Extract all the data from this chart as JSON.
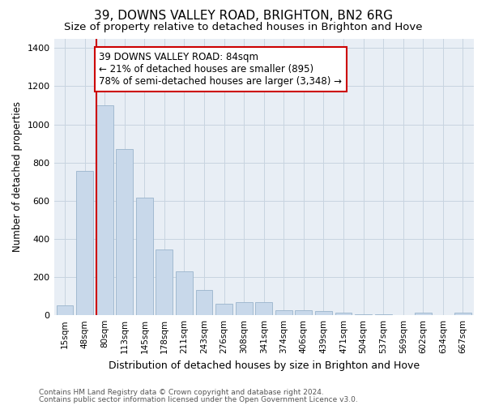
{
  "title": "39, DOWNS VALLEY ROAD, BRIGHTON, BN2 6RG",
  "subtitle": "Size of property relative to detached houses in Brighton and Hove",
  "xlabel": "Distribution of detached houses by size in Brighton and Hove",
  "ylabel": "Number of detached properties",
  "categories": [
    "15sqm",
    "48sqm",
    "80sqm",
    "113sqm",
    "145sqm",
    "178sqm",
    "211sqm",
    "243sqm",
    "276sqm",
    "308sqm",
    "341sqm",
    "374sqm",
    "406sqm",
    "439sqm",
    "471sqm",
    "504sqm",
    "537sqm",
    "569sqm",
    "602sqm",
    "634sqm",
    "667sqm"
  ],
  "values": [
    50,
    755,
    1100,
    870,
    615,
    345,
    228,
    133,
    60,
    70,
    70,
    28,
    25,
    20,
    14,
    5,
    5,
    0,
    12,
    0,
    12
  ],
  "bar_color": "#c8d8ea",
  "bar_edge_color": "#9ab4cc",
  "vline_bar_index": 2,
  "annotation_line1": "39 DOWNS VALLEY ROAD: 84sqm",
  "annotation_line2": "← 21% of detached houses are smaller (895)",
  "annotation_line3": "78% of semi-detached houses are larger (3,348) →",
  "vline_color": "#cc0000",
  "annotation_box_edge_color": "#cc0000",
  "annotation_box_face_color": "#ffffff",
  "ylim": [
    0,
    1450
  ],
  "yticks": [
    0,
    200,
    400,
    600,
    800,
    1000,
    1200,
    1400
  ],
  "footer1": "Contains HM Land Registry data © Crown copyright and database right 2024.",
  "footer2": "Contains public sector information licensed under the Open Government Licence v3.0.",
  "bg_color": "#ffffff",
  "plot_bg_color": "#e8eef5",
  "grid_color": "#c8d4e0",
  "title_fontsize": 11,
  "subtitle_fontsize": 9.5,
  "ylabel_fontsize": 8.5,
  "xlabel_fontsize": 9,
  "tick_fontsize": 7.5,
  "ann_fontsize": 8.5,
  "footer_fontsize": 6.5
}
